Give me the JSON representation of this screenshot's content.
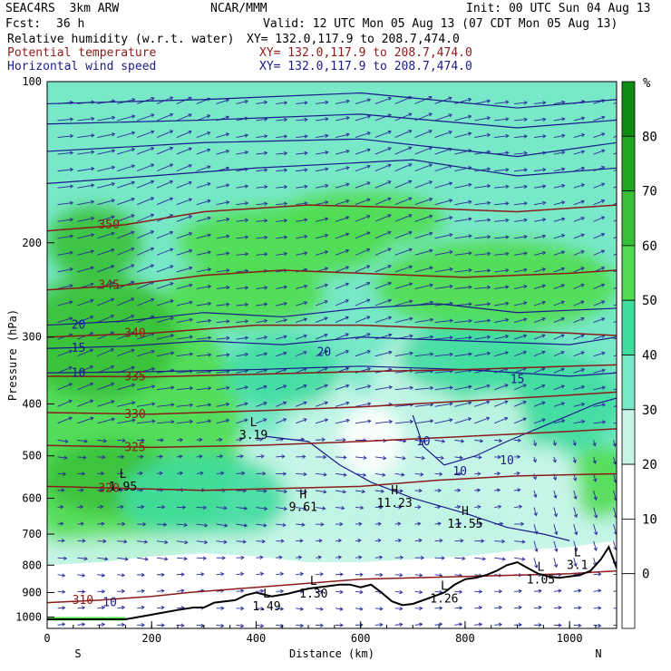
{
  "header": {
    "model": "SEAC4RS  3km ARW",
    "org": "NCAR/MMM",
    "init": "Init: 00 UTC Sun 04 Aug 13",
    "fcst_label": "Fcst:",
    "fcst_value": "36 h",
    "valid": "Valid: 12 UTC Mon 05 Aug 13 (07 CDT Mon 05 Aug 13)",
    "fields": [
      {
        "name": "Relative humidity (w.r.t. water)",
        "xy": "XY= 132.0,117.9 to 208.7,474.0",
        "color": "#000000"
      },
      {
        "name": "Potential temperature",
        "xy": "XY= 132.0,117.9 to 208.7,474.0",
        "color": "#8b1a1a"
      },
      {
        "name": "Horizontal wind speed",
        "xy": "XY= 132.0,117.9 to 208.7,474.0",
        "color": "#1a1a8b"
      }
    ]
  },
  "chart_data": {
    "type": "heatmap",
    "title": "",
    "xlabel": "Distance (km)",
    "ylabel": "Pressure (hPa)",
    "xlim": [
      0,
      1090
    ],
    "ylim": [
      1050,
      100
    ],
    "y_scale": "log",
    "x_ticks": [
      0,
      200,
      400,
      600,
      800,
      1000
    ],
    "y_ticks": [
      100,
      200,
      300,
      400,
      500,
      600,
      700,
      800,
      900,
      1000
    ],
    "x_end_labels": {
      "left": "S",
      "right": "N"
    },
    "colorbar": {
      "unit": "%",
      "levels": [
        0,
        10,
        20,
        30,
        40,
        50,
        60,
        70,
        80
      ],
      "colors": [
        "#ffffff",
        "#ffffff",
        "#ffffff",
        "#c8f5e8",
        "#78e8c8",
        "#40dca0",
        "#50dc50",
        "#38c038",
        "#20a820",
        "#108a10"
      ]
    },
    "theta_isentropes": [
      {
        "label": "310",
        "k": 310,
        "pts": [
          [
            0,
            940
          ],
          [
            100,
            930
          ],
          [
            200,
            915
          ],
          [
            270,
            900
          ],
          [
            400,
            880
          ],
          [
            600,
            850
          ],
          [
            800,
            840
          ],
          [
            1000,
            830
          ],
          [
            1090,
            820
          ]
        ]
      },
      {
        "label": "320",
        "k": 320,
        "pts": [
          [
            0,
            570
          ],
          [
            150,
            575
          ],
          [
            300,
            580
          ],
          [
            450,
            575
          ],
          [
            600,
            570
          ],
          [
            750,
            555
          ],
          [
            900,
            545
          ],
          [
            1090,
            540
          ]
        ]
      },
      {
        "label": "325",
        "k": 325,
        "pts": [
          [
            0,
            478
          ],
          [
            200,
            482
          ],
          [
            400,
            478
          ],
          [
            600,
            470
          ],
          [
            800,
            460
          ],
          [
            1000,
            450
          ],
          [
            1090,
            445
          ]
        ]
      },
      {
        "label": "330",
        "k": 330,
        "pts": [
          [
            0,
            415
          ],
          [
            200,
            418
          ],
          [
            400,
            412
          ],
          [
            600,
            405
          ],
          [
            800,
            395
          ],
          [
            1000,
            385
          ],
          [
            1090,
            380
          ]
        ]
      },
      {
        "label": "335",
        "k": 335,
        "pts": [
          [
            0,
            355
          ],
          [
            200,
            356
          ],
          [
            400,
            352
          ],
          [
            600,
            348
          ],
          [
            800,
            345
          ],
          [
            1000,
            340
          ],
          [
            1090,
            338
          ]
        ]
      },
      {
        "label": "340",
        "k": 340,
        "pts": [
          [
            0,
            300
          ],
          [
            200,
            295
          ],
          [
            400,
            285
          ],
          [
            600,
            285
          ],
          [
            800,
            290
          ],
          [
            1000,
            295
          ],
          [
            1090,
            298
          ]
        ]
      },
      {
        "label": "345",
        "k": 345,
        "pts": [
          [
            0,
            245
          ],
          [
            150,
            240
          ],
          [
            300,
            230
          ],
          [
            450,
            225
          ],
          [
            600,
            228
          ],
          [
            800,
            232
          ],
          [
            1000,
            228
          ],
          [
            1090,
            225
          ]
        ]
      },
      {
        "label": "350",
        "k": 350,
        "pts": [
          [
            0,
            190
          ],
          [
            150,
            185
          ],
          [
            300,
            175
          ],
          [
            500,
            170
          ],
          [
            700,
            172
          ],
          [
            900,
            175
          ],
          [
            1090,
            170
          ]
        ]
      }
    ],
    "rh_highs_lows": [
      {
        "type": "L",
        "value": "3.19",
        "x": 395,
        "p": 440
      },
      {
        "type": "L",
        "value": "1.95",
        "x": 145,
        "p": 550
      },
      {
        "type": "H",
        "value": "9.61",
        "x": 490,
        "p": 600
      },
      {
        "type": "H",
        "value": "11.23",
        "x": 665,
        "p": 590
      },
      {
        "type": "H",
        "value": "11.55",
        "x": 800,
        "p": 645
      },
      {
        "type": "L",
        "value": "1.30",
        "x": 510,
        "p": 870
      },
      {
        "type": "L",
        "value": "1.49",
        "x": 420,
        "p": 920
      },
      {
        "type": "L",
        "value": "1.26",
        "x": 760,
        "p": 890
      },
      {
        "type": "L",
        "value": "3.1",
        "x": 1015,
        "p": 770
      },
      {
        "type": "L",
        "value": "1.05",
        "x": 945,
        "p": 820
      }
    ],
    "wind_speed_labels": [
      {
        "value": "10",
        "x": 60,
        "p": 350
      },
      {
        "value": "15",
        "x": 60,
        "p": 315
      },
      {
        "value": "20",
        "x": 60,
        "p": 285
      },
      {
        "value": "20",
        "x": 530,
        "p": 320
      },
      {
        "value": "15",
        "x": 900,
        "p": 360
      },
      {
        "value": "10",
        "x": 720,
        "p": 470
      },
      {
        "value": "10",
        "x": 790,
        "p": 535
      },
      {
        "value": "10",
        "x": 880,
        "p": 510
      },
      {
        "value": "10",
        "x": 120,
        "p": 940
      }
    ],
    "terrain_surface": [
      [
        0,
        1010
      ],
      [
        150,
        1010
      ],
      [
        200,
        990
      ],
      [
        250,
        970
      ],
      [
        280,
        960
      ],
      [
        300,
        960
      ],
      [
        320,
        940
      ],
      [
        360,
        930
      ],
      [
        380,
        910
      ],
      [
        400,
        900
      ],
      [
        430,
        915
      ],
      [
        460,
        905
      ],
      [
        500,
        885
      ],
      [
        540,
        875
      ],
      [
        560,
        870
      ],
      [
        580,
        870
      ],
      [
        600,
        880
      ],
      [
        620,
        870
      ],
      [
        640,
        900
      ],
      [
        660,
        935
      ],
      [
        680,
        950
      ],
      [
        700,
        945
      ],
      [
        720,
        930
      ],
      [
        740,
        915
      ],
      [
        760,
        900
      ],
      [
        780,
        870
      ],
      [
        800,
        850
      ],
      [
        820,
        845
      ],
      [
        840,
        835
      ],
      [
        860,
        820
      ],
      [
        880,
        800
      ],
      [
        900,
        790
      ],
      [
        920,
        810
      ],
      [
        940,
        830
      ],
      [
        960,
        840
      ],
      [
        980,
        845
      ],
      [
        1000,
        840
      ],
      [
        1020,
        835
      ],
      [
        1040,
        820
      ],
      [
        1060,
        780
      ],
      [
        1075,
        740
      ],
      [
        1090,
        810
      ]
    ]
  }
}
